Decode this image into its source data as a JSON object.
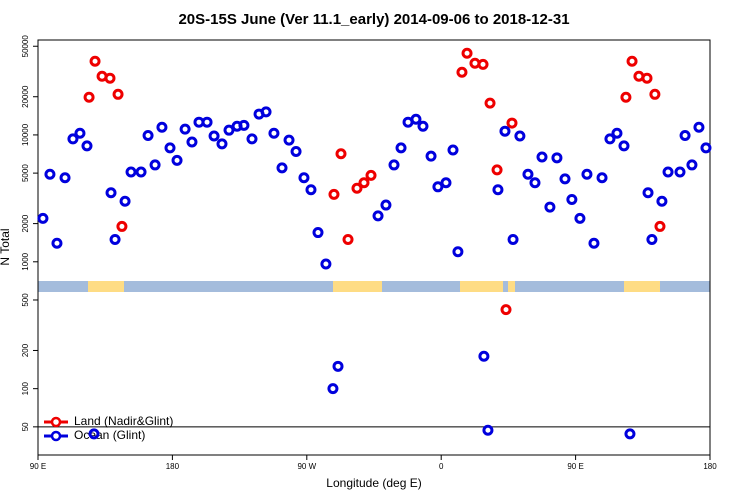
{
  "chart_data": {
    "type": "scatter",
    "title": "20S-15S June (Ver 11.1_early)   2014-09-06 to 2018-12-31",
    "xlabel": "Longitude (deg E)",
    "ylabel": "N Total",
    "xlim": [
      90,
      540
    ],
    "xticks": [
      {
        "value": 90,
        "label": "90 E"
      },
      180,
      {
        "value": 270,
        "label": "90 W"
      },
      {
        "value": 360,
        "label": "0"
      },
      {
        "value": 450,
        "label": "90 E"
      },
      {
        "value": 540,
        "label": "180"
      }
    ],
    "ylim": [
      30,
      56000
    ],
    "yticks": [
      50,
      100,
      200,
      500,
      1000,
      2000,
      5000,
      10000,
      20000,
      50000
    ],
    "log_y": true,
    "hline": 50,
    "legend": "bottom-left",
    "series": [
      {
        "name": "Land (Nadir&Glint)",
        "color": "#ee0000",
        "x": [
          124.2,
          128.2,
          132.9,
          138.2,
          143.6,
          146.2,
          288.2,
          292.9,
          297.6,
          303.6,
          308.3,
          313.0,
          373.9,
          377.3,
          382.6,
          388.0,
          392.7,
          397.4,
          403.4,
          407.4,
          483.7,
          487.8,
          492.4,
          497.8,
          503.1,
          506.5
        ],
        "values": [
          19800,
          38100,
          29000,
          28000,
          20900,
          1900,
          3400,
          7100,
          1500,
          3800,
          4200,
          4800,
          31200,
          44000,
          36700,
          36000,
          17800,
          5300,
          420,
          12400,
          19800,
          38100,
          29000,
          28000,
          20900,
          1900
        ]
      },
      {
        "name": "Ocean (Glint)",
        "color": "#0000dd",
        "x": [
          93.3,
          98.0,
          102.7,
          108.1,
          113.4,
          118.1,
          122.8,
          127.5,
          138.9,
          141.6,
          148.3,
          152.3,
          159.0,
          163.7,
          168.4,
          173.0,
          178.4,
          183.1,
          188.5,
          193.1,
          197.8,
          203.2,
          207.9,
          213.2,
          217.9,
          223.3,
          227.9,
          233.3,
          238.0,
          242.7,
          248.0,
          253.4,
          258.1,
          262.8,
          268.1,
          272.8,
          277.5,
          282.8,
          287.5,
          290.9,
          317.7,
          323.0,
          328.4,
          333.1,
          337.8,
          343.1,
          347.8,
          353.2,
          357.8,
          363.2,
          367.9,
          371.2,
          388.6,
          391.3,
          398.0,
          402.7,
          408.1,
          412.7,
          418.1,
          422.8,
          427.5,
          432.8,
          437.5,
          442.9,
          447.5,
          452.9,
          457.6,
          462.3,
          467.7,
          473.0,
          477.7,
          482.4,
          486.4,
          498.5,
          501.1,
          507.8,
          511.9,
          519.9,
          523.3,
          527.9,
          532.6,
          537.3
        ],
        "values": [
          2200,
          4900,
          1400,
          4600,
          9300,
          10300,
          8200,
          44,
          3500,
          1500,
          3000,
          5100,
          5100,
          9900,
          5800,
          11500,
          7900,
          6300,
          11100,
          8800,
          12600,
          12600,
          9800,
          8500,
          10900,
          11700,
          11900,
          9300,
          14600,
          15200,
          10300,
          5500,
          9100,
          7400,
          4600,
          3700,
          1700,
          960,
          100,
          150,
          2300,
          2800,
          5800,
          7900,
          12600,
          13300,
          11700,
          6800,
          3900,
          4200,
          7600,
          1200,
          180,
          47,
          3700,
          10700,
          1500,
          9800,
          4900,
          4200,
          6700,
          2700,
          6600,
          4500,
          3100,
          2200,
          4900,
          1400,
          4600,
          9300,
          10300,
          8200,
          44,
          3500,
          1500,
          3000,
          5100,
          5100,
          9900,
          5800,
          11500,
          7900
        ]
      }
    ]
  }
}
